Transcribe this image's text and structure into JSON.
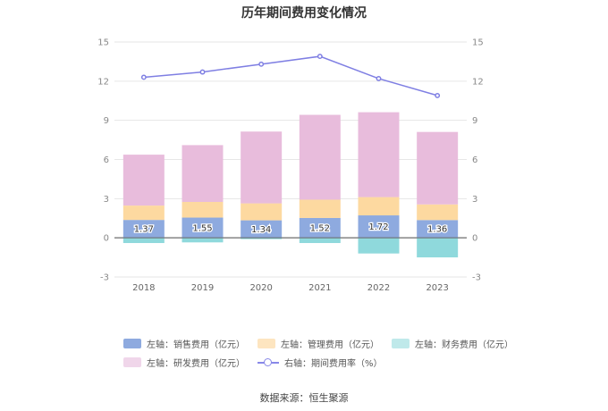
{
  "chart_data": {
    "type": "bar",
    "title": "历年期间费用变化情况",
    "categories": [
      "2018",
      "2019",
      "2020",
      "2021",
      "2022",
      "2023"
    ],
    "stacked": true,
    "left_axis": {
      "ylim": [
        -3,
        15
      ],
      "ticks": [
        "15",
        "12",
        "9",
        "6",
        "3",
        "0",
        "-3"
      ]
    },
    "right_axis": {
      "ylim": [
        -3,
        15
      ],
      "ticks": [
        "15",
        "12",
        "9",
        "6",
        "3",
        "0",
        "-3"
      ]
    },
    "series": [
      {
        "name": "左轴：销售费用（亿元）",
        "axis": "left",
        "color": "#8eaadf",
        "values": [
          1.37,
          1.55,
          1.34,
          1.52,
          1.72,
          1.36
        ]
      },
      {
        "name": "左轴：管理费用（亿元）",
        "axis": "left",
        "color": "#fdd9a0",
        "values": [
          1.1,
          1.2,
          1.3,
          1.4,
          1.4,
          1.2
        ]
      },
      {
        "name": "左轴：财务费用（亿元）",
        "axis": "left",
        "color": "#8fd9dc",
        "values": [
          -0.4,
          -0.35,
          -0.1,
          -0.4,
          -1.2,
          -1.5
        ]
      },
      {
        "name": "左轴：研发费用（亿元）",
        "axis": "left",
        "color": "#e8bcdc",
        "values": [
          3.9,
          4.35,
          5.5,
          6.5,
          6.5,
          5.55
        ]
      },
      {
        "name": "右轴：期间费用率（%）",
        "axis": "right",
        "type": "line",
        "color": "#7f7fe3",
        "values": [
          12.3,
          12.7,
          13.3,
          13.9,
          12.2,
          10.9
        ]
      }
    ],
    "data_labels": [
      "1.37",
      "1.55",
      "1.34",
      "1.52",
      "1.72",
      "1.36"
    ],
    "legend_position": "bottom",
    "grid": true
  },
  "legend": {
    "row1": [
      "左轴：销售费用（亿元）",
      "左轴：管理费用（亿元）",
      "左轴：财务费用（亿元）"
    ],
    "row2": [
      "左轴：研发费用（亿元）",
      "右轴：期间费用率（%）"
    ]
  },
  "source": "数据来源：恒生聚源"
}
